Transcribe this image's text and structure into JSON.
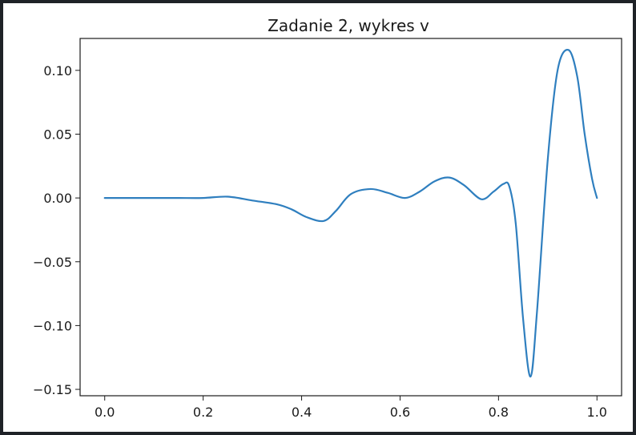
{
  "chart_data": {
    "type": "line",
    "title": "Zadanie 2, wykres v",
    "xlabel": "",
    "ylabel": "",
    "xlim": [
      -0.05,
      1.05
    ],
    "ylim": [
      -0.155,
      0.125
    ],
    "grid": false,
    "line_color": "#2f7fbf",
    "x_ticks": [
      {
        "value": 0.0,
        "label": "0.0"
      },
      {
        "value": 0.2,
        "label": "0.2"
      },
      {
        "value": 0.4,
        "label": "0.4"
      },
      {
        "value": 0.6,
        "label": "0.6"
      },
      {
        "value": 0.8,
        "label": "0.8"
      },
      {
        "value": 1.0,
        "label": "1.0"
      }
    ],
    "y_ticks": [
      {
        "value": 0.1,
        "label": "0.10"
      },
      {
        "value": 0.05,
        "label": "0.05"
      },
      {
        "value": 0.0,
        "label": "0.00"
      },
      {
        "value": -0.05,
        "label": "−0.05"
      },
      {
        "value": -0.1,
        "label": "−0.10"
      },
      {
        "value": -0.15,
        "label": "−0.15"
      }
    ],
    "series": [
      {
        "x": [
          0.0,
          0.05,
          0.1,
          0.15,
          0.2,
          0.25,
          0.3,
          0.35,
          0.38,
          0.41,
          0.445,
          0.47,
          0.5,
          0.54,
          0.575,
          0.61,
          0.64,
          0.67,
          0.7,
          0.73,
          0.765,
          0.79,
          0.81,
          0.822,
          0.835,
          0.85,
          0.865,
          0.878,
          0.9,
          0.92,
          0.942,
          0.96,
          0.975,
          0.99,
          1.0
        ],
        "y": [
          0.0,
          0.0,
          0.0,
          0.0,
          0.0,
          0.001,
          -0.002,
          -0.005,
          -0.009,
          -0.015,
          -0.018,
          -0.01,
          0.003,
          0.007,
          0.004,
          0.0,
          0.005,
          0.013,
          0.016,
          0.01,
          -0.001,
          0.005,
          0.011,
          0.009,
          -0.02,
          -0.095,
          -0.14,
          -0.09,
          0.03,
          0.1,
          0.116,
          0.095,
          0.05,
          0.015,
          0.0
        ]
      }
    ]
  }
}
